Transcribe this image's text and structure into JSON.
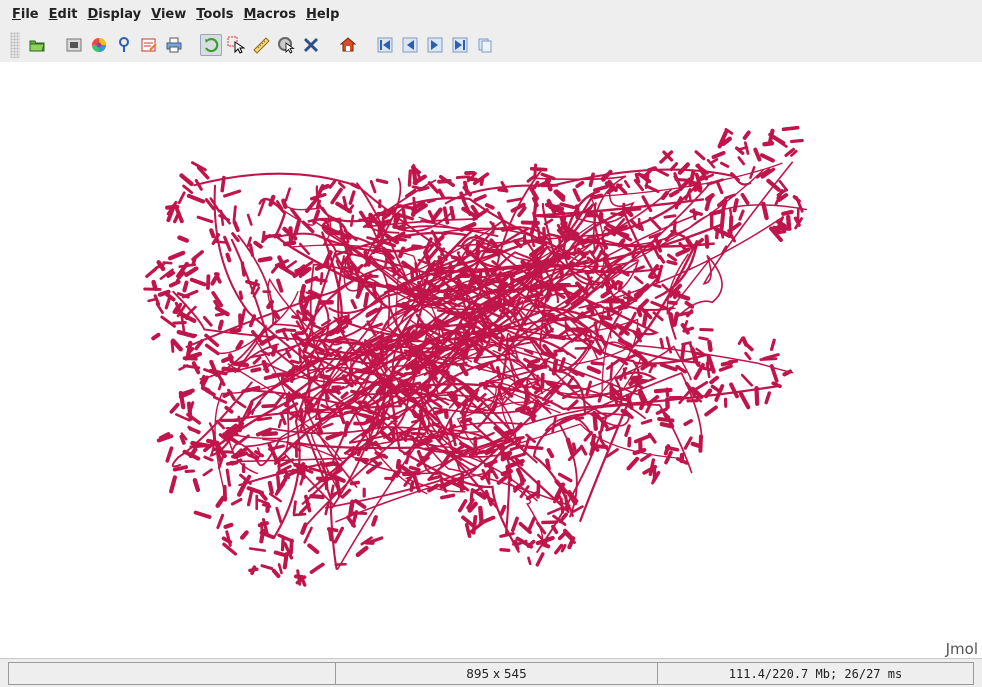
{
  "menu": {
    "items": [
      {
        "mnemonic": "F",
        "rest": "ile"
      },
      {
        "mnemonic": "E",
        "rest": "dit"
      },
      {
        "mnemonic": "D",
        "rest": "isplay"
      },
      {
        "mnemonic": "V",
        "rest": "iew"
      },
      {
        "mnemonic": "T",
        "rest": "ools"
      },
      {
        "mnemonic": "M",
        "rest": "acros"
      },
      {
        "mnemonic": "H",
        "rest": "elp"
      }
    ]
  },
  "toolbar": {
    "buttons": [
      {
        "icon": "open-folder-icon"
      },
      {
        "icon": "screenshot-camera-icon"
      },
      {
        "icon": "spectrum-ball-icon"
      },
      {
        "icon": "help-pin-icon"
      },
      {
        "icon": "edit-script-icon"
      },
      {
        "icon": "print-icon"
      },
      {
        "icon": "rotate-icon",
        "selected": true
      },
      {
        "icon": "pick-cursor-icon"
      },
      {
        "icon": "measure-ruler-icon"
      },
      {
        "icon": "zoom-pick-icon"
      },
      {
        "icon": "delete-atoms-icon"
      },
      {
        "icon": "home-icon"
      },
      {
        "icon": "first-frame-icon"
      },
      {
        "icon": "previous-frame-icon"
      },
      {
        "icon": "next-frame-icon"
      },
      {
        "icon": "last-frame-icon"
      },
      {
        "icon": "animate-icon"
      }
    ]
  },
  "viewer": {
    "watermark": "Jmol",
    "molecule_color": "#c0154a"
  },
  "status": {
    "left": "",
    "center": "895 x 545",
    "right": "111.4/220.7 Mb;  26/27 ms"
  }
}
